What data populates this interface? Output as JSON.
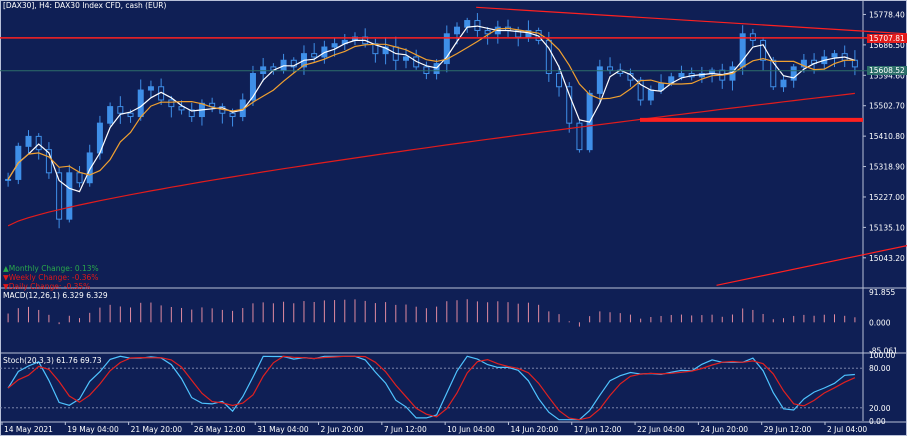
{
  "header": {
    "title": "[DAX30], H4:  DAX30 Index CFD, cash (EUR)"
  },
  "changes": [
    {
      "arrow": "▲",
      "text": "Monthly Change:  0.13%",
      "color": "#2aa84a"
    },
    {
      "arrow": "▼",
      "text": "Weekly Change:  -0.36%",
      "color": "#e01818"
    },
    {
      "arrow": "▼",
      "text": "Daily Change:  -0.35%",
      "color": "#e01818"
    }
  ],
  "badges": {
    "upper_level": "15707.81",
    "current_price": "15608.52"
  },
  "colors": {
    "background": "#0f1f55",
    "up_candle": "#3f8fe8",
    "down_candle": "#2a6ad0",
    "ma_fast": "#ffffff",
    "ma_mid": "#f0a030",
    "ma_slow": "#e21c1c",
    "resistance": "#ff2020",
    "macd_hist": "#e08aa0",
    "stoch_main": "#4fc3ff",
    "stoch_signal": "#e02020"
  },
  "chart_data": [
    {
      "type": "candlestick",
      "title": "[DAX30], H4:  DAX30 Index CFD, cash (EUR)",
      "x_tick_labels": [
        "14 May 2021",
        "19 May 04:00",
        "21 May 20:00",
        "26 May 12:00",
        "31 May 04:00",
        "2 Jun 20:00",
        "7 Jun 12:00",
        "10 Jun 04:00",
        "14 Jun 20:00",
        "17 Jun 12:00",
        "22 Jun 04:00",
        "24 Jun 20:00",
        "29 Jun 12:00",
        "2 Jul 04:00"
      ],
      "y_tick_labels": [
        "15778.40",
        "15686.50",
        "15594.60",
        "15502.70",
        "15410.80",
        "15318.90",
        "15227.00",
        "15135.10",
        "15043.20"
      ],
      "ylim": [
        14955,
        15810
      ],
      "close_path": [
        15280,
        15380,
        15410,
        15370,
        15300,
        15160,
        15300,
        15270,
        15360,
        15450,
        15500,
        15480,
        15470,
        15550,
        15560,
        15520,
        15500,
        15490,
        15470,
        15510,
        15500,
        15480,
        15470,
        15520,
        15600,
        15620,
        15610,
        15640,
        15620,
        15660,
        15650,
        15680,
        15690,
        15700,
        15710,
        15690,
        15660,
        15680,
        15640,
        15650,
        15620,
        15600,
        15630,
        15720,
        15740,
        15760,
        15730,
        15720,
        15740,
        15730,
        15710,
        15730,
        15700,
        15600,
        15560,
        15450,
        15370,
        15540,
        15620,
        15610,
        15600,
        15580,
        15520,
        15550,
        15570,
        15590,
        15600,
        15590,
        15600,
        15610,
        15580,
        15620,
        15720,
        15700,
        15640,
        15560,
        15580,
        15620,
        15640,
        15630,
        15650,
        15660,
        15640,
        15620
      ],
      "horizontal_levels": [
        15707.81,
        15460
      ],
      "current_price": 15608.52,
      "trendline_upper": [
        [
          0.525,
          15800
        ],
        [
          1.0,
          15720
        ]
      ],
      "trendline_lower": [
        [
          0.79,
          14960
        ],
        [
          1.0,
          15080
        ]
      ]
    },
    {
      "type": "bar",
      "title": "MACD(12,26,1) 6.329 6.329",
      "y_tick_labels": [
        "91.855",
        "0.000",
        "-85.061"
      ],
      "ylim": [
        -90,
        98
      ]
    },
    {
      "type": "line",
      "title": "Stoch(20,3,3) 61.76 69.73",
      "y_tick_labels": [
        "100.00",
        "80.00",
        "20.00",
        "0.00"
      ],
      "ylim": [
        0,
        100
      ],
      "levels": [
        80,
        20
      ]
    }
  ]
}
